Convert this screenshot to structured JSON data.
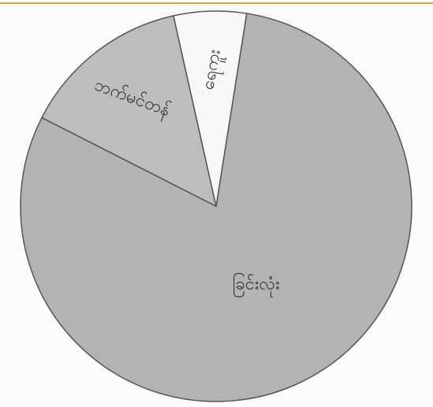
{
  "chart_data": {
    "type": "pie",
    "categories": [
      "ခြင်းလုံး",
      "ဘက်မင်တန်",
      "ရေကူး"
    ],
    "values": [
      80,
      14,
      6
    ],
    "colors": [
      "#b3b3b3",
      "#bdbdbd",
      "#f7f7f7"
    ]
  }
}
